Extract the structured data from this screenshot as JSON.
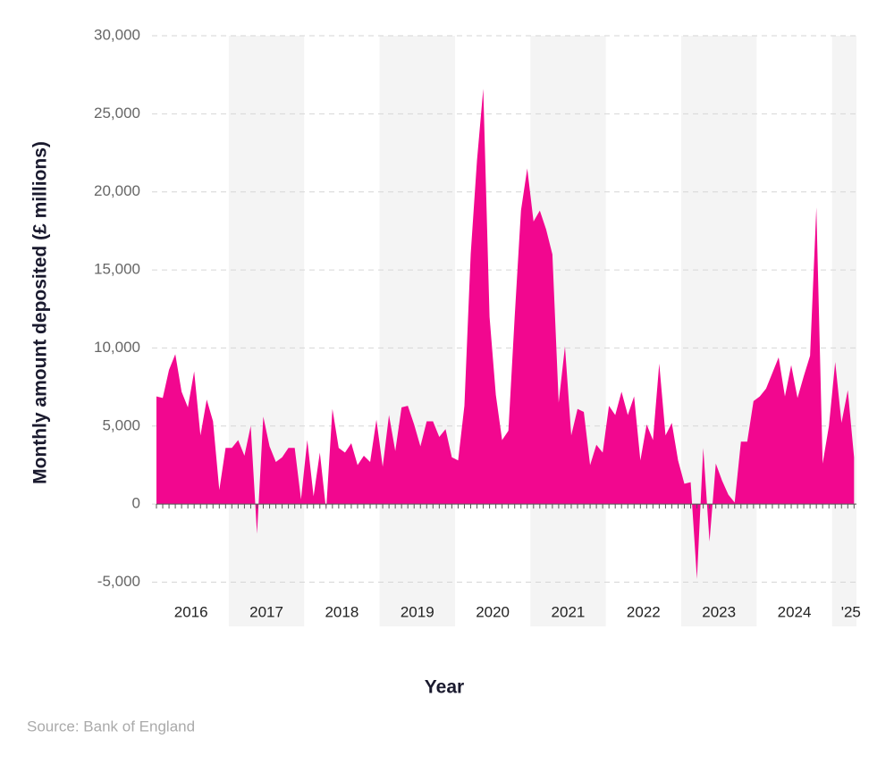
{
  "chart_data": {
    "type": "area",
    "y_label": "Monthly amount deposited (£ millions)",
    "x_label": "Year",
    "source": "Source: Bank of England",
    "color": "#f2078f",
    "categories": [
      null,
      null,
      null,
      null,
      null,
      "2016",
      null,
      null,
      null,
      null,
      null,
      null,
      null,
      null,
      null,
      null,
      null,
      "2017",
      null,
      null,
      null,
      null,
      null,
      null,
      null,
      null,
      null,
      null,
      null,
      "2018",
      null,
      null,
      null,
      null,
      null,
      null,
      null,
      null,
      null,
      null,
      null,
      "2019",
      null,
      null,
      null,
      null,
      null,
      null,
      null,
      null,
      null,
      null,
      null,
      "2020",
      null,
      null,
      null,
      null,
      null,
      null,
      null,
      null,
      null,
      null,
      null,
      "2021",
      null,
      null,
      null,
      null,
      null,
      null,
      null,
      null,
      null,
      null,
      null,
      "2022",
      null,
      null,
      null,
      null,
      null,
      null,
      null,
      null,
      null,
      null,
      null,
      "2023",
      null,
      null,
      null,
      null,
      null,
      null,
      null,
      null,
      null,
      null,
      null,
      "2024",
      null,
      null,
      null,
      null,
      null,
      null,
      null,
      null,
      "'25",
      null
    ],
    "values": [
      6900,
      6800,
      8600,
      9600,
      7200,
      6200,
      8500,
      4400,
      6700,
      5300,
      900,
      3600,
      3600,
      4100,
      3100,
      5000,
      -1900,
      5600,
      3700,
      2700,
      3000,
      3600,
      3600,
      300,
      4100,
      500,
      3300,
      -400,
      6100,
      3600,
      3300,
      3900,
      2500,
      3100,
      2700,
      5400,
      2400,
      5700,
      3400,
      6200,
      6300,
      5100,
      3700,
      5300,
      5300,
      4300,
      4800,
      3000,
      2800,
      6300,
      16000,
      22000,
      26600,
      12000,
      7000,
      4100,
      4700,
      12000,
      18800,
      21500,
      18100,
      18800,
      17600,
      16000,
      6500,
      10100,
      4400,
      6100,
      5900,
      2500,
      3800,
      3300,
      6300,
      5700,
      7200,
      5700,
      6900,
      2800,
      5100,
      4100,
      9000,
      4400,
      5200,
      2800,
      1300,
      1400,
      -4800,
      3600,
      -2400,
      2600,
      1500,
      600,
      100,
      4000,
      4000,
      6600,
      6900,
      7400,
      8400,
      9400,
      6900,
      8900,
      6800,
      8200,
      9500,
      19000,
      2600,
      5000,
      9100,
      5200,
      7300,
      3000
    ],
    "ylim": [
      -5000,
      30000
    ],
    "yticks": [
      {
        "value": -5000,
        "label": "-5,000"
      },
      0,
      {
        "value": 5000,
        "label": "5,000"
      },
      {
        "value": 10000,
        "label": "10,000"
      },
      {
        "value": 15000,
        "label": "15,000"
      },
      {
        "value": 20000,
        "label": "20,000"
      },
      {
        "value": 25000,
        "label": "25,000"
      },
      {
        "value": 30000,
        "label": "30,000"
      }
    ],
    "grid": true
  }
}
